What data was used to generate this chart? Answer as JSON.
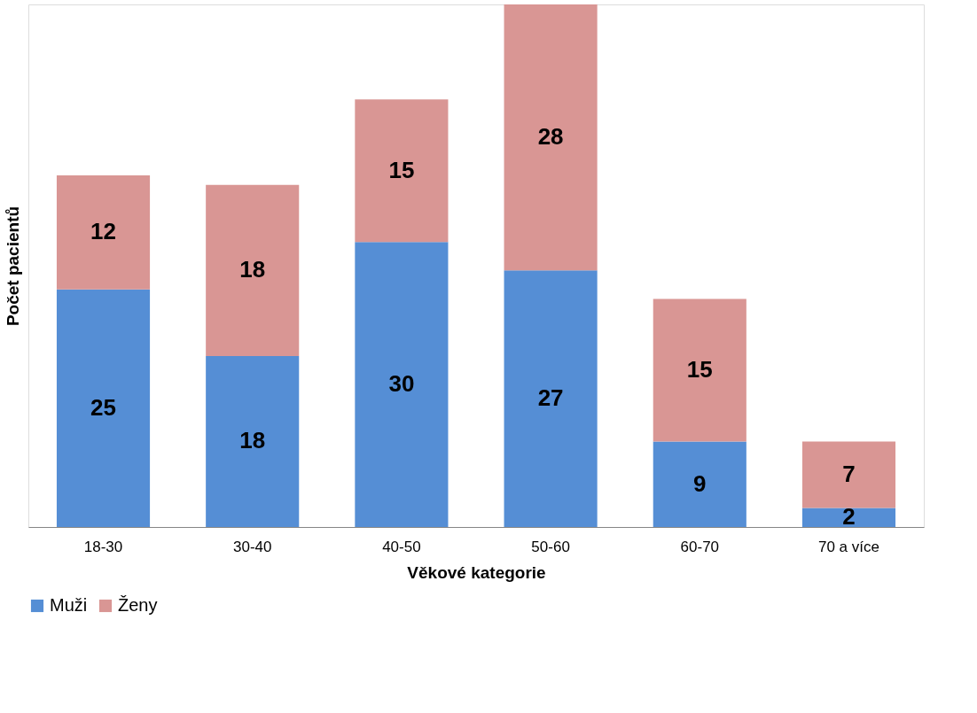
{
  "chart_data": {
    "type": "bar",
    "stacked": true,
    "xlabel": "Věkové kategorie",
    "ylabel": "Počet pacientů",
    "categories": [
      "18-30",
      "30-40",
      "40-50",
      "50-60",
      "60-70",
      "70 a více"
    ],
    "series": [
      {
        "name": "Muži",
        "color": "#558ed5",
        "values": [
          25,
          18,
          30,
          27,
          9,
          2
        ]
      },
      {
        "name": "Ženy",
        "color": "#d99694",
        "values": [
          12,
          18,
          15,
          28,
          15,
          7
        ]
      }
    ],
    "data_labels": true,
    "legend": "bottom",
    "grid": false
  }
}
